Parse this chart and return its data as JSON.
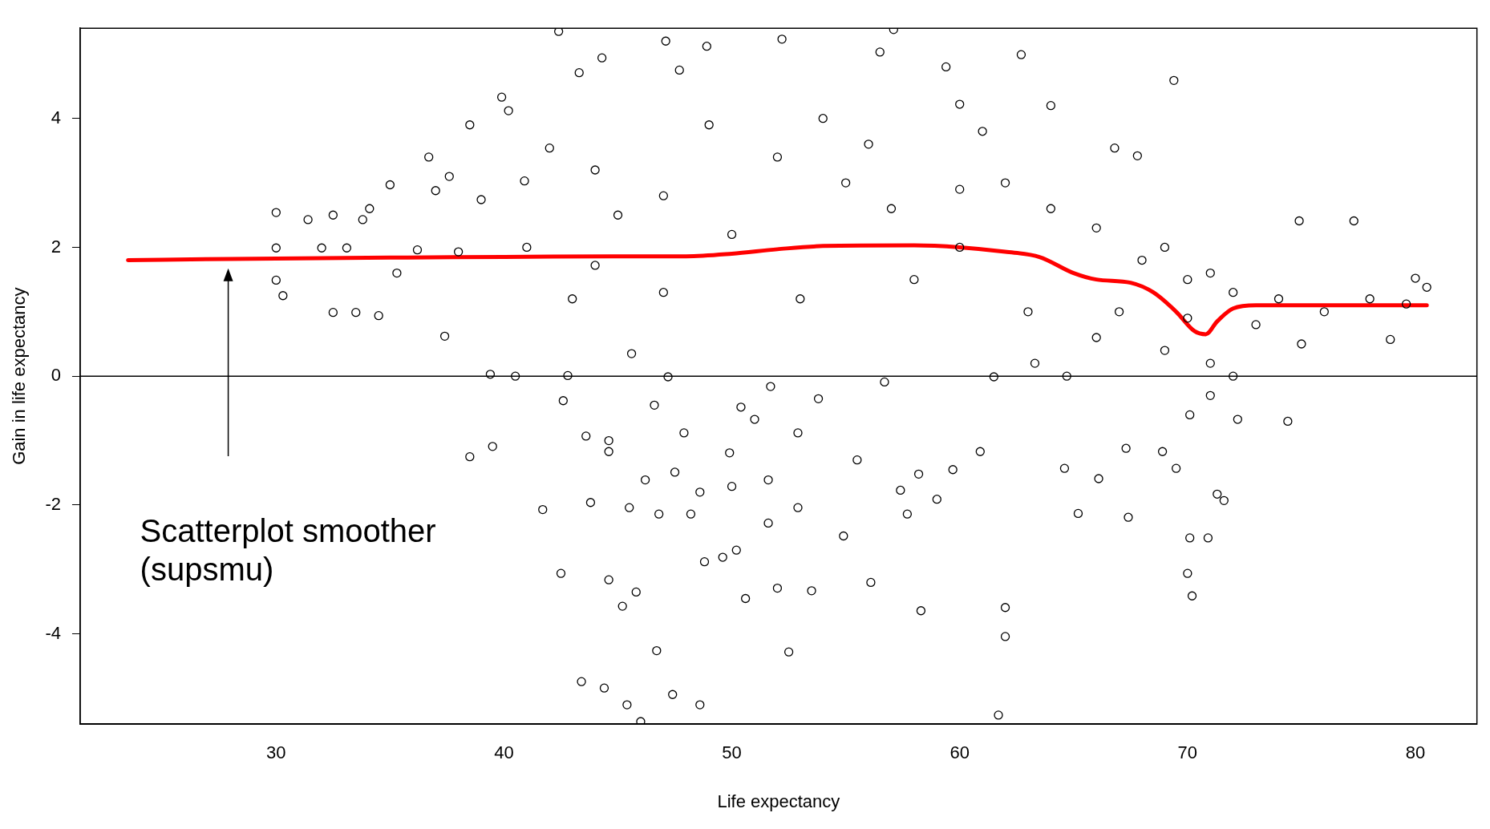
{
  "chart_data": {
    "type": "scatter",
    "xlabel": "Life expectancy",
    "ylabel": "Gain in life expectancy",
    "xlim": [
      21.4,
      82.7
    ],
    "ylim": [
      -5.4,
      5.4
    ],
    "xticks": [
      30,
      40,
      50,
      60,
      70,
      80
    ],
    "yticks": [
      -4,
      -2,
      0,
      2,
      4
    ],
    "grid": false,
    "legend": false,
    "ref_lines": [
      {
        "axis": "y",
        "value": 0,
        "color": "#000000"
      }
    ],
    "annotations": [
      "Scatterplot smoother\n(supsmu)"
    ],
    "series": [
      {
        "type": "scatter",
        "marker": "circle",
        "color": "#000000",
        "x": [
          30,
          30,
          30,
          30.3,
          31.4,
          32.0,
          32.5,
          32.5,
          33.1,
          33.5,
          33.8,
          34.1,
          34.5,
          35,
          35.3,
          36.2,
          36.7,
          37,
          37.4,
          37.6,
          38,
          38.5,
          38.5,
          39,
          39.4,
          39.5,
          39.9,
          40.2,
          40.5,
          40.9,
          41.7,
          42,
          42.4,
          42.5,
          42.6,
          42.8,
          43.3,
          43.4,
          43.6,
          43.8,
          44.0,
          44.3,
          44.6,
          44.6,
          44.4,
          44.6,
          45.2,
          45.4,
          45.5,
          45.6,
          45.8,
          46,
          46.2,
          46.6,
          46.7,
          46.8,
          47.1,
          47.2,
          47.4,
          47.5,
          47.7,
          47.9,
          48.2,
          48.6,
          48.6,
          48.8,
          48.9,
          49.6,
          49.9,
          50,
          50.2,
          50.4,
          50.6,
          51,
          51.6,
          51.6,
          51.7,
          52,
          52.2,
          52.5,
          52.9,
          52.9,
          53.5,
          53.8,
          54.9,
          55.5,
          56.1,
          56.5,
          56.7,
          57.1,
          57.4,
          57.7,
          58.2,
          58.3,
          59,
          59.4,
          59.7,
          60,
          60.9,
          61.5,
          61.7,
          62,
          62,
          62.7,
          63.3,
          64.6,
          64.7,
          65.2,
          66.1,
          66.8,
          67.3,
          67.4,
          67.8,
          68.9,
          69.5,
          69.4,
          70.0,
          70.2,
          70.1,
          70.9,
          71.3,
          71.6,
          71.0,
          70.1,
          72.2,
          74.4,
          74.9,
          77.3,
          80,
          80.5,
          79.6,
          78.9,
          45,
          47,
          50,
          52,
          55,
          57,
          60,
          62,
          64,
          66,
          68,
          70,
          72,
          74,
          76,
          78,
          43,
          47,
          53,
          58,
          63,
          66,
          69,
          71,
          73,
          75,
          41,
          44,
          49,
          54,
          56,
          61,
          64,
          60,
          67,
          69,
          70,
          71,
          72
        ],
        "values": [
          2.54,
          1.99,
          1.49,
          1.25,
          2.43,
          1.99,
          2.5,
          0.99,
          1.99,
          0.99,
          2.43,
          2.6,
          0.94,
          2.97,
          1.6,
          1.96,
          3.4,
          2.88,
          0.62,
          3.1,
          1.93,
          -1.25,
          3.9,
          2.74,
          0.03,
          -1.09,
          4.33,
          4.12,
          0,
          3.03,
          -2.07,
          3.54,
          5.35,
          -3.06,
          -0.38,
          0.01,
          4.71,
          -4.74,
          -0.93,
          -1.96,
          1.72,
          4.94,
          -1.17,
          -3.16,
          -4.84,
          -1.0,
          -3.57,
          -5.1,
          -2.04,
          0.35,
          -3.35,
          -5.36,
          -1.61,
          -0.45,
          -4.26,
          -2.14,
          5.2,
          -0.01,
          -4.94,
          -1.49,
          4.75,
          -0.88,
          -2.14,
          -1.8,
          -5.1,
          -2.88,
          5.12,
          -2.81,
          -1.19,
          -1.71,
          -2.7,
          -0.48,
          -3.45,
          -0.67,
          -1.61,
          -2.28,
          -0.16,
          -3.29,
          5.23,
          -4.28,
          -2.04,
          -0.88,
          -3.33,
          -0.35,
          -2.48,
          -1.3,
          -3.2,
          5.03,
          -0.09,
          5.38,
          -1.77,
          -2.14,
          -1.52,
          -3.64,
          -1.91,
          4.8,
          -1.45,
          4.22,
          -1.17,
          -0.01,
          -5.26,
          -3.59,
          -4.04,
          4.99,
          0.2,
          -1.43,
          0,
          -2.13,
          -1.59,
          3.54,
          -1.12,
          -2.19,
          3.42,
          -1.17,
          -1.43,
          4.59,
          -3.06,
          -3.41,
          -2.51,
          -2.51,
          -1.83,
          -1.93,
          -0.3,
          -0.6,
          -0.67,
          -0.7,
          2.41,
          2.41,
          1.52,
          1.38,
          1.12,
          0.57,
          2.5,
          2.8,
          2.2,
          3.4,
          3.0,
          2.6,
          2.9,
          3.0,
          2.6,
          2.3,
          1.8,
          1.5,
          1.3,
          1.2,
          1.0,
          1.2,
          1.2,
          1.3,
          1.2,
          1.5,
          1.0,
          0.6,
          0.4,
          0.2,
          0.8,
          0.5,
          2.0,
          3.2,
          3.9,
          4.0,
          3.6,
          3.8,
          4.2,
          2.0,
          1.0,
          2.0,
          0.9,
          1.6,
          0.0
        ]
      },
      {
        "type": "line",
        "marker": "none",
        "color": "#ff0000",
        "x": [
          23.5,
          28,
          35,
          40,
          45,
          48,
          50,
          52,
          54,
          58,
          60,
          62,
          63.5,
          65,
          66,
          67.5,
          68.5,
          69.5,
          70.3,
          70.8,
          71.3,
          72,
          73,
          76,
          80.5
        ],
        "values": [
          1.8,
          1.82,
          1.84,
          1.85,
          1.86,
          1.86,
          1.9,
          1.97,
          2.02,
          2.03,
          2.0,
          1.93,
          1.85,
          1.6,
          1.5,
          1.45,
          1.3,
          1.0,
          0.7,
          0.65,
          0.85,
          1.05,
          1.1,
          1.1,
          1.1
        ]
      }
    ]
  }
}
